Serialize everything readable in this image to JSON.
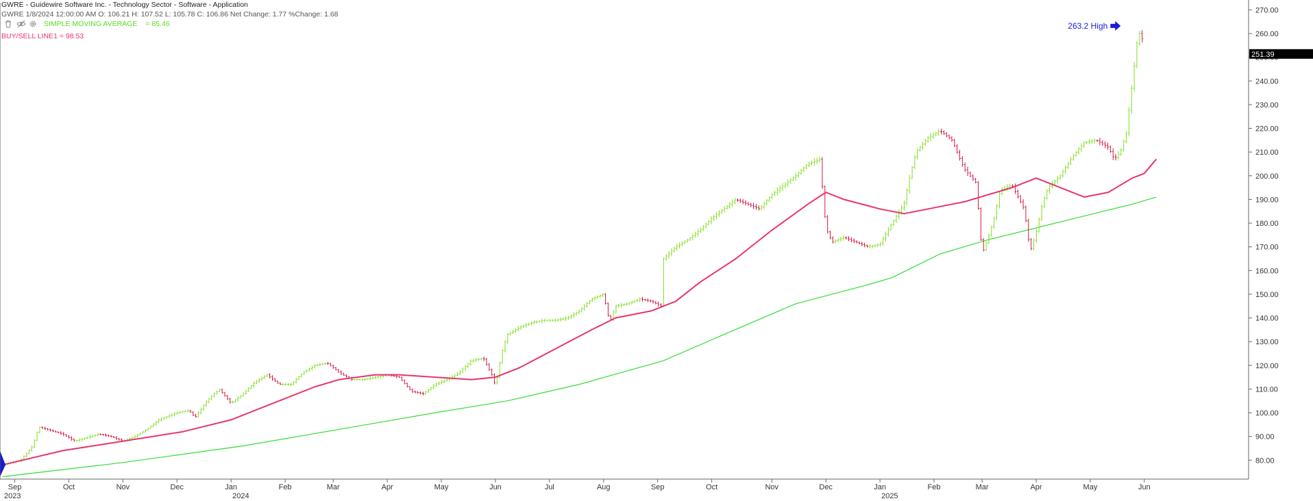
{
  "header": {
    "title": "GWRE - Guidewire Software Inc. - Technology Sector - Software - Application",
    "quote": "GWRE 1/8/2024 12:00:00 AM O: 106.21 H: 107.52 L: 105.78 C: 106.86 Net Change: 1.77  %Change: 1.68",
    "indicator1_label": "SIMPLE MOVING AVERAGE",
    "indicator1_value": "= 85.46",
    "indicator2": "BUY/SELL LINE1 = 98.53"
  },
  "toolbar_icons": [
    "trash-icon",
    "eye-icon",
    "gear-icon"
  ],
  "annotation": {
    "label": "263.2 High",
    "value": 263.2
  },
  "last_price": {
    "label": "251.39",
    "value": 251.39
  },
  "colors": {
    "up": "#7fe020",
    "down": "#d6163f",
    "sma": "#33dd33",
    "bsl": "#e8336b",
    "annotation": "#1a1adf",
    "axis": "#666666"
  },
  "chart_data": {
    "type": "ohlc",
    "ylim": [
      72,
      273
    ],
    "y_ticks": [
      80,
      90,
      100,
      110,
      120,
      130,
      140,
      150,
      160,
      170,
      180,
      190,
      200,
      210,
      220,
      230,
      240,
      250,
      260,
      270
    ],
    "y_tick_labels": [
      "80.00",
      "90.00",
      "100.00",
      "110.00",
      "120.00",
      "130.00",
      "140.00",
      "150.00",
      "160.00",
      "170.00",
      "180.00",
      "190.00",
      "200.00",
      "210.00",
      "220.00",
      "230.00",
      "240.00",
      "250.00",
      "260.00",
      "270.00"
    ],
    "x_range": [
      0,
      99
    ],
    "x_labels": [
      {
        "x": 1.0,
        "label": "Sep"
      },
      {
        "x": 5.5,
        "label": "Oct"
      },
      {
        "x": 10.0,
        "label": "Nov"
      },
      {
        "x": 14.5,
        "label": "Dec"
      },
      {
        "x": 19.0,
        "label": "Jan"
      },
      {
        "x": 23.5,
        "label": "Feb"
      },
      {
        "x": 27.5,
        "label": "Mar"
      },
      {
        "x": 32.0,
        "label": "Apr"
      },
      {
        "x": 36.5,
        "label": "May"
      },
      {
        "x": 41.0,
        "label": "Jun"
      },
      {
        "x": 45.5,
        "label": "Jul"
      },
      {
        "x": 50.0,
        "label": "Aug"
      },
      {
        "x": 54.5,
        "label": "Sep"
      },
      {
        "x": 59.0,
        "label": "Oct"
      },
      {
        "x": 64.0,
        "label": "Nov"
      },
      {
        "x": 68.5,
        "label": "Dec"
      },
      {
        "x": 73.0,
        "label": "Jan"
      },
      {
        "x": 77.5,
        "label": "Feb"
      },
      {
        "x": 81.5,
        "label": "Mar"
      },
      {
        "x": 86.0,
        "label": "Apr"
      },
      {
        "x": 90.5,
        "label": "May"
      },
      {
        "x": 95.0,
        "label": "Jun"
      }
    ],
    "year_labels": [
      {
        "x": 0.0,
        "label": "2023"
      },
      {
        "x": 19.0,
        "label": "2024"
      },
      {
        "x": 73.0,
        "label": "2025"
      }
    ],
    "price": [
      [
        0,
        78
      ],
      [
        1.5,
        80
      ],
      [
        2.5,
        86
      ],
      [
        3,
        94
      ],
      [
        5,
        91
      ],
      [
        6,
        88
      ],
      [
        8,
        91
      ],
      [
        9,
        90
      ],
      [
        10,
        88
      ],
      [
        11,
        90
      ],
      [
        12,
        93
      ],
      [
        13,
        97
      ],
      [
        14.5,
        100
      ],
      [
        15.5,
        101
      ],
      [
        16,
        98
      ],
      [
        17,
        105
      ],
      [
        18,
        110
      ],
      [
        19,
        104
      ],
      [
        20,
        108
      ],
      [
        21,
        113
      ],
      [
        22,
        116
      ],
      [
        23,
        112
      ],
      [
        24,
        112
      ],
      [
        25,
        117
      ],
      [
        26,
        120
      ],
      [
        27,
        121
      ],
      [
        28,
        117
      ],
      [
        29,
        114
      ],
      [
        30,
        114
      ],
      [
        31,
        115
      ],
      [
        32,
        116
      ],
      [
        33,
        115
      ],
      [
        34,
        109
      ],
      [
        35,
        108
      ],
      [
        36,
        112
      ],
      [
        37,
        114
      ],
      [
        38,
        117
      ],
      [
        39,
        122
      ],
      [
        40,
        123
      ],
      [
        40.8,
        115
      ],
      [
        41,
        111
      ],
      [
        41.5,
        125
      ],
      [
        42,
        133
      ],
      [
        43,
        136
      ],
      [
        44,
        138
      ],
      [
        45,
        139
      ],
      [
        46,
        139
      ],
      [
        47,
        140
      ],
      [
        48,
        143
      ],
      [
        49,
        148
      ],
      [
        50,
        150
      ],
      [
        50.5,
        138
      ],
      [
        51,
        145
      ],
      [
        52,
        146
      ],
      [
        53,
        148
      ],
      [
        54,
        147
      ],
      [
        54.8,
        145
      ],
      [
        55,
        165
      ],
      [
        56,
        170
      ],
      [
        57,
        173
      ],
      [
        58,
        177
      ],
      [
        59,
        182
      ],
      [
        60,
        186
      ],
      [
        61,
        190
      ],
      [
        62,
        188
      ],
      [
        63,
        186
      ],
      [
        64,
        192
      ],
      [
        65,
        196
      ],
      [
        66,
        200
      ],
      [
        67,
        205
      ],
      [
        68,
        207
      ],
      [
        68.5,
        178
      ],
      [
        69,
        172
      ],
      [
        70,
        174
      ],
      [
        71,
        172
      ],
      [
        72,
        170
      ],
      [
        73,
        171
      ],
      [
        74,
        180
      ],
      [
        75,
        188
      ],
      [
        75.5,
        200
      ],
      [
        76,
        210
      ],
      [
        77,
        216
      ],
      [
        78,
        219
      ],
      [
        79,
        215
      ],
      [
        80,
        203
      ],
      [
        81,
        197
      ],
      [
        81.5,
        167
      ],
      [
        82,
        174
      ],
      [
        82.5,
        182
      ],
      [
        83,
        194
      ],
      [
        84,
        196
      ],
      [
        85,
        186
      ],
      [
        85.5,
        168
      ],
      [
        86,
        176
      ],
      [
        86.5,
        188
      ],
      [
        87,
        195
      ],
      [
        88,
        200
      ],
      [
        89,
        208
      ],
      [
        90,
        214
      ],
      [
        91,
        215
      ],
      [
        92,
        212
      ],
      [
        92.5,
        207
      ],
      [
        93,
        210
      ],
      [
        93.5,
        218
      ],
      [
        94.5,
        261
      ],
      [
        95,
        256
      ]
    ],
    "series": [
      {
        "name": "SIMPLE MOVING AVERAGE",
        "points": [
          [
            0,
            73
          ],
          [
            10,
            79
          ],
          [
            20,
            86
          ],
          [
            28,
            93
          ],
          [
            36,
            100
          ],
          [
            42,
            105
          ],
          [
            48,
            112
          ],
          [
            55,
            122
          ],
          [
            60,
            133
          ],
          [
            66,
            146
          ],
          [
            72,
            154
          ],
          [
            74,
            157
          ],
          [
            78,
            167
          ],
          [
            82,
            173
          ],
          [
            86,
            178
          ],
          [
            90,
            183
          ],
          [
            94,
            188
          ],
          [
            96,
            191
          ]
        ]
      },
      {
        "name": "BUY/SELL LINE",
        "points": [
          [
            0,
            78
          ],
          [
            5,
            84
          ],
          [
            10,
            88
          ],
          [
            15,
            92
          ],
          [
            19,
            97
          ],
          [
            23,
            105
          ],
          [
            26,
            111
          ],
          [
            28,
            114
          ],
          [
            31,
            116
          ],
          [
            33,
            116
          ],
          [
            36,
            115
          ],
          [
            39,
            114
          ],
          [
            41,
            115
          ],
          [
            43,
            119
          ],
          [
            46,
            127
          ],
          [
            49,
            135
          ],
          [
            51,
            140
          ],
          [
            54,
            143
          ],
          [
            56,
            147
          ],
          [
            58,
            155
          ],
          [
            61,
            165
          ],
          [
            64,
            177
          ],
          [
            67,
            188
          ],
          [
            68.5,
            193
          ],
          [
            70,
            190
          ],
          [
            73,
            186
          ],
          [
            75,
            184
          ],
          [
            77,
            186
          ],
          [
            80,
            189
          ],
          [
            82,
            192
          ],
          [
            84,
            195
          ],
          [
            86,
            199
          ],
          [
            88,
            195
          ],
          [
            90,
            191
          ],
          [
            92,
            193
          ],
          [
            94,
            199
          ],
          [
            95,
            201
          ],
          [
            96,
            207
          ]
        ]
      }
    ]
  }
}
